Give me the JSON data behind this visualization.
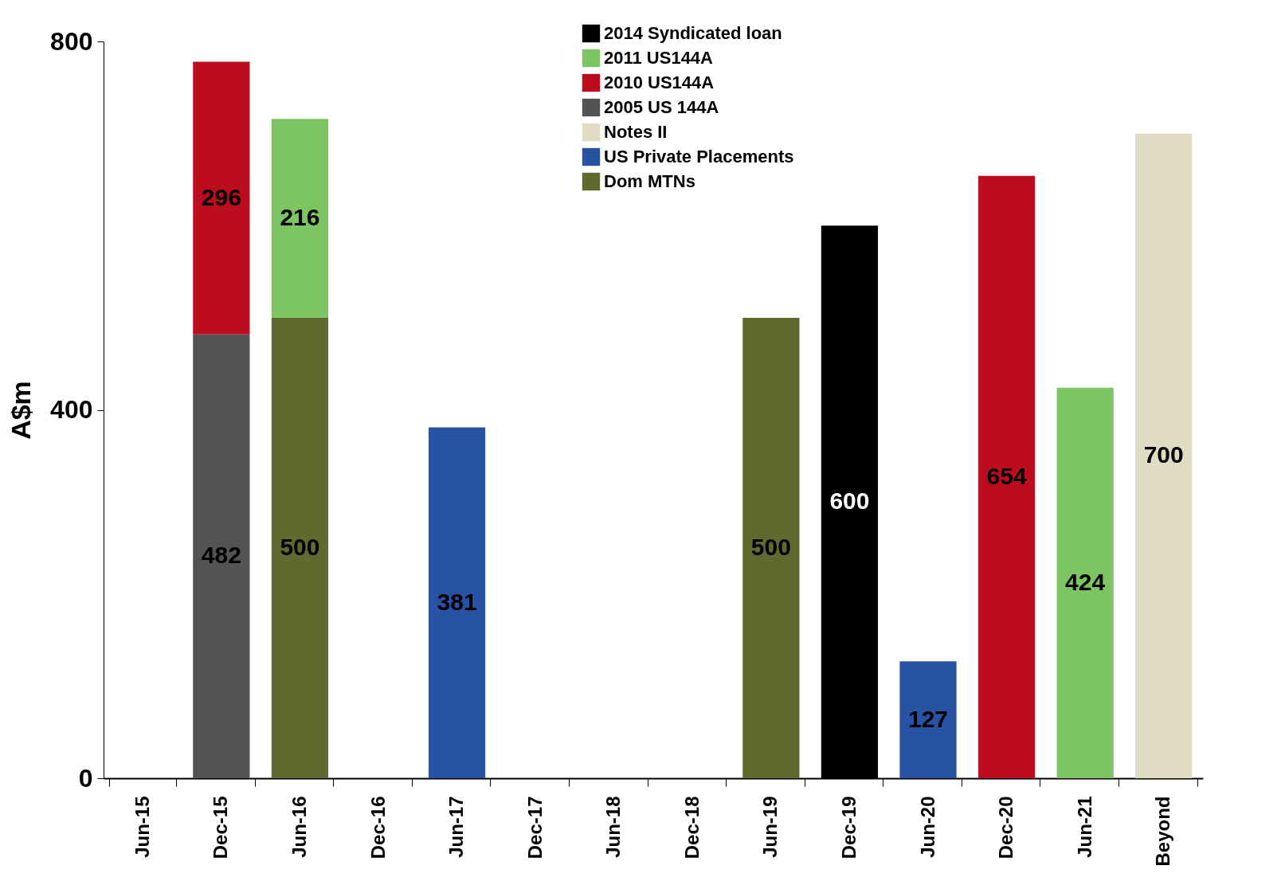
{
  "chart_data": {
    "type": "bar",
    "stacked": true,
    "ylabel": "A$m",
    "categories": [
      "Jun-15",
      "Dec-15",
      "Jun-16",
      "Dec-16",
      "Jun-17",
      "Dec-17",
      "Jun-18",
      "Dec-18",
      "Jun-19",
      "Dec-19",
      "Jun-20",
      "Dec-20",
      "Jun-21",
      "Beyond"
    ],
    "series": [
      {
        "name": "Dom MTNs",
        "color": "#5f6a2e",
        "values": [
          null,
          null,
          500,
          null,
          null,
          null,
          null,
          null,
          500,
          null,
          null,
          null,
          null,
          null
        ]
      },
      {
        "name": "US Private Placements",
        "color": "#2852a3",
        "values": [
          null,
          null,
          null,
          null,
          381,
          null,
          null,
          null,
          null,
          null,
          127,
          null,
          null,
          null
        ]
      },
      {
        "name": "Notes II",
        "color": "#e0dbc3",
        "values": [
          null,
          null,
          null,
          null,
          null,
          null,
          null,
          null,
          null,
          null,
          null,
          null,
          null,
          700
        ]
      },
      {
        "name": "2005 US 144A",
        "color": "#535353",
        "values": [
          null,
          482,
          null,
          null,
          null,
          null,
          null,
          null,
          null,
          null,
          null,
          null,
          null,
          null
        ]
      },
      {
        "name": "2010 US144A",
        "color": "#bc0d1f",
        "values": [
          null,
          296,
          null,
          null,
          null,
          null,
          null,
          null,
          null,
          null,
          null,
          654,
          null,
          null
        ]
      },
      {
        "name": "2011 US144A",
        "color": "#7dc462",
        "values": [
          null,
          null,
          216,
          null,
          null,
          null,
          null,
          null,
          null,
          null,
          null,
          null,
          424,
          null
        ]
      },
      {
        "name": "2014 Syndicated loan",
        "color": "#000000",
        "values": [
          null,
          null,
          null,
          null,
          null,
          null,
          null,
          null,
          null,
          600,
          null,
          null,
          null,
          null
        ]
      }
    ],
    "ylim": [
      0,
      800
    ],
    "yticks": [
      0,
      400,
      800
    ],
    "grid": false,
    "legend": "top",
    "data_labels": true
  }
}
